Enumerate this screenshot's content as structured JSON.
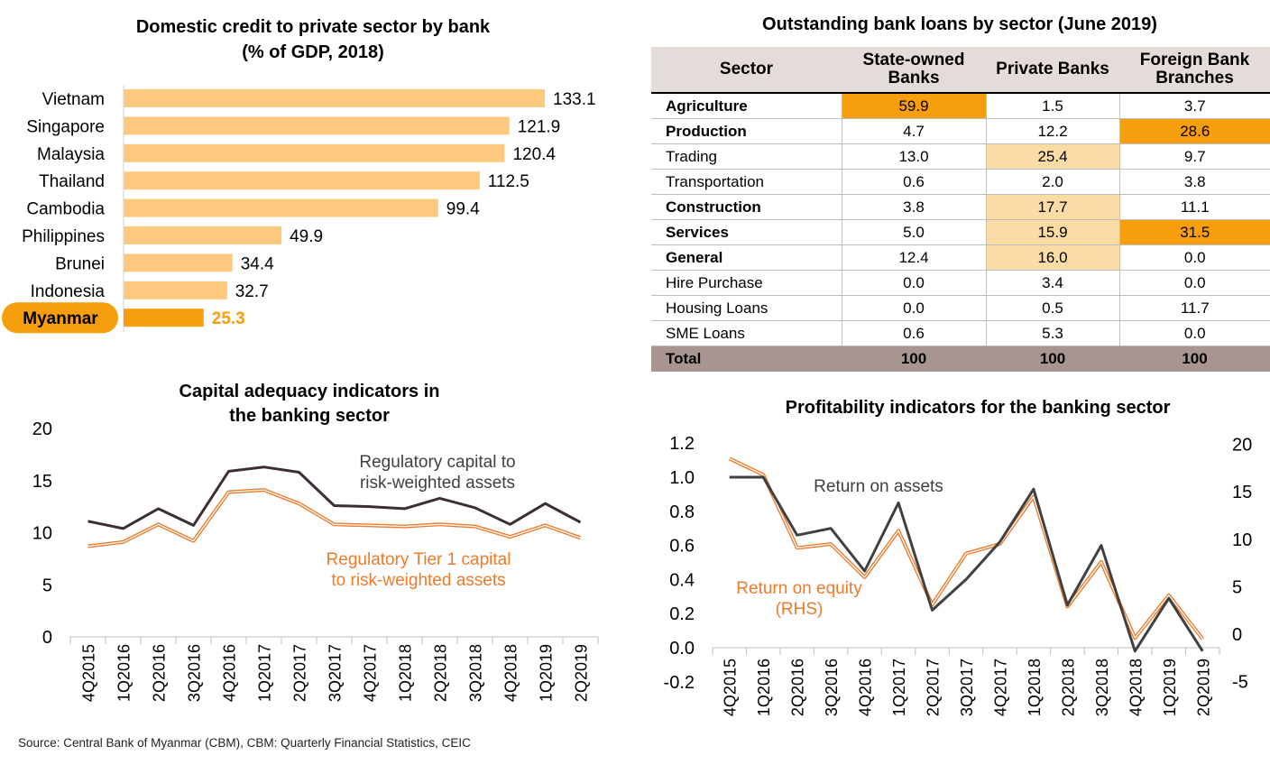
{
  "source": "Source: Central Bank of Myanmar (CBM), CBM: Quarterly Financial Statistics, CEIC",
  "colors": {
    "bar": "#fcc97e",
    "bar_highlight": "#f79e0c",
    "highlight_text": "#f79e0c",
    "capital_line": "#3d2f2f",
    "tier1_line": "#ee7a2a",
    "roa_line": "#404040",
    "roe_line": "#ee7a2a",
    "cell_high": "#f79e0c",
    "cell_low": "#fcdca5"
  },
  "chart_data": [
    {
      "id": "credit",
      "type": "bar",
      "orientation": "horizontal",
      "title": [
        "Domestic credit to private sector by bank",
        "(% of GDP, 2018)"
      ],
      "categories": [
        "Vietnam",
        "Singapore",
        "Malaysia",
        "Thailand",
        "Cambodia",
        "Philippines",
        "Brunei",
        "Indonesia",
        "Myanmar"
      ],
      "values": [
        133.1,
        121.9,
        120.4,
        112.5,
        99.4,
        49.9,
        34.4,
        32.7,
        25.3
      ],
      "value_labels": [
        "133.1",
        "121.9",
        "120.4",
        "112.5",
        "99.4",
        "49.9",
        "34.4",
        "32.7",
        "25.3"
      ],
      "highlight": "Myanmar",
      "xlim": [
        0,
        133.1
      ]
    },
    {
      "id": "capital",
      "type": "line",
      "title": [
        "Capital adequacy indicators in",
        "the banking sector"
      ],
      "categories": [
        "4Q2015",
        "1Q2016",
        "2Q2016",
        "3Q2016",
        "4Q2016",
        "1Q2017",
        "2Q2017",
        "3Q2017",
        "4Q2017",
        "1Q2018",
        "2Q2018",
        "3Q2018",
        "4Q2018",
        "1Q2019",
        "2Q2019"
      ],
      "ylim": [
        0,
        20
      ],
      "yticks": [
        "0",
        "5",
        "10",
        "15",
        "20"
      ],
      "series": [
        {
          "name": "Regulatory capital to risk-weighted assets",
          "label_lines": [
            "Regulatory capital to",
            "risk-weighted assets"
          ],
          "values": [
            11.1,
            10.4,
            12.3,
            10.7,
            15.9,
            16.3,
            15.8,
            12.6,
            12.5,
            12.3,
            13.3,
            12.4,
            10.8,
            12.8,
            11.0
          ]
        },
        {
          "name": "Regulatory Tier 1 capital to risk-weighted assets",
          "label_lines": [
            "Regulatory Tier 1 capital",
            "to risk-weighted assets"
          ],
          "values": [
            8.7,
            9.1,
            10.8,
            9.2,
            13.9,
            14.1,
            12.8,
            10.8,
            10.7,
            10.6,
            10.8,
            10.6,
            9.6,
            10.7,
            9.5
          ]
        }
      ]
    },
    {
      "id": "profit",
      "type": "line",
      "title": "Profitability indicators for the banking sector",
      "categories": [
        "4Q2015",
        "1Q2016",
        "2Q2016",
        "3Q2016",
        "4Q2016",
        "1Q2017",
        "2Q2017",
        "3Q2017",
        "4Q2017",
        "1Q2018",
        "2Q2018",
        "3Q2018",
        "4Q2018",
        "1Q2019",
        "2Q2019"
      ],
      "ylim_left": [
        -0.2,
        1.2
      ],
      "yticks_left": [
        "-0.2",
        "0.0",
        "0.2",
        "0.4",
        "0.6",
        "0.8",
        "1.0",
        "1.2"
      ],
      "ylim_right": [
        -5,
        20
      ],
      "yticks_right": [
        "-5",
        "0",
        "5",
        "10",
        "15",
        "20"
      ],
      "series": [
        {
          "name": "Return on assets",
          "label_lines": [
            "Return on assets"
          ],
          "axis": "left",
          "values": [
            1.0,
            1.0,
            0.66,
            0.7,
            0.45,
            0.85,
            0.22,
            0.4,
            0.62,
            0.93,
            0.25,
            0.6,
            -0.02,
            0.29,
            -0.02
          ]
        },
        {
          "name": "Return on equity (RHS)",
          "label_lines": [
            "Return on equity",
            "(RHS)"
          ],
          "axis": "right",
          "values": [
            18.5,
            16.8,
            9.1,
            9.5,
            6.0,
            10.9,
            3.1,
            8.5,
            9.5,
            14.5,
            2.9,
            7.6,
            -0.4,
            4.1,
            -0.5
          ]
        }
      ]
    }
  ],
  "loans_table": {
    "title": "Outstanding bank loans by sector (June 2019)",
    "headers": {
      "sector": "Sector",
      "state": "State-owned Banks",
      "private": "Private Banks",
      "foreign": "Foreign Bank Branches"
    },
    "rows": [
      {
        "sector": "Agriculture",
        "state": "59.9",
        "private": "1.5",
        "foreign": "3.7"
      },
      {
        "sector": "Production",
        "state": "4.7",
        "private": "12.2",
        "foreign": "28.6"
      },
      {
        "sector": "Trading",
        "state": "13.0",
        "private": "25.4",
        "foreign": "9.7"
      },
      {
        "sector": "Transportation",
        "state": "0.6",
        "private": "2.0",
        "foreign": "3.8"
      },
      {
        "sector": "Construction",
        "state": "3.8",
        "private": "17.7",
        "foreign": "11.1"
      },
      {
        "sector": "Services",
        "state": "5.0",
        "private": "15.9",
        "foreign": "31.5"
      },
      {
        "sector": "General",
        "state": "12.4",
        "private": "16.0",
        "foreign": "0.0"
      },
      {
        "sector": "Hire Purchase",
        "state": "0.0",
        "private": "3.4",
        "foreign": "0.0"
      },
      {
        "sector": "Housing Loans",
        "state": "0.0",
        "private": "0.5",
        "foreign": "11.7"
      },
      {
        "sector": "SME Loans",
        "state": "0.6",
        "private": "5.3",
        "foreign": "0.0"
      }
    ],
    "total": {
      "sector": "Total",
      "state": "100",
      "private": "100",
      "foreign": "100"
    }
  }
}
